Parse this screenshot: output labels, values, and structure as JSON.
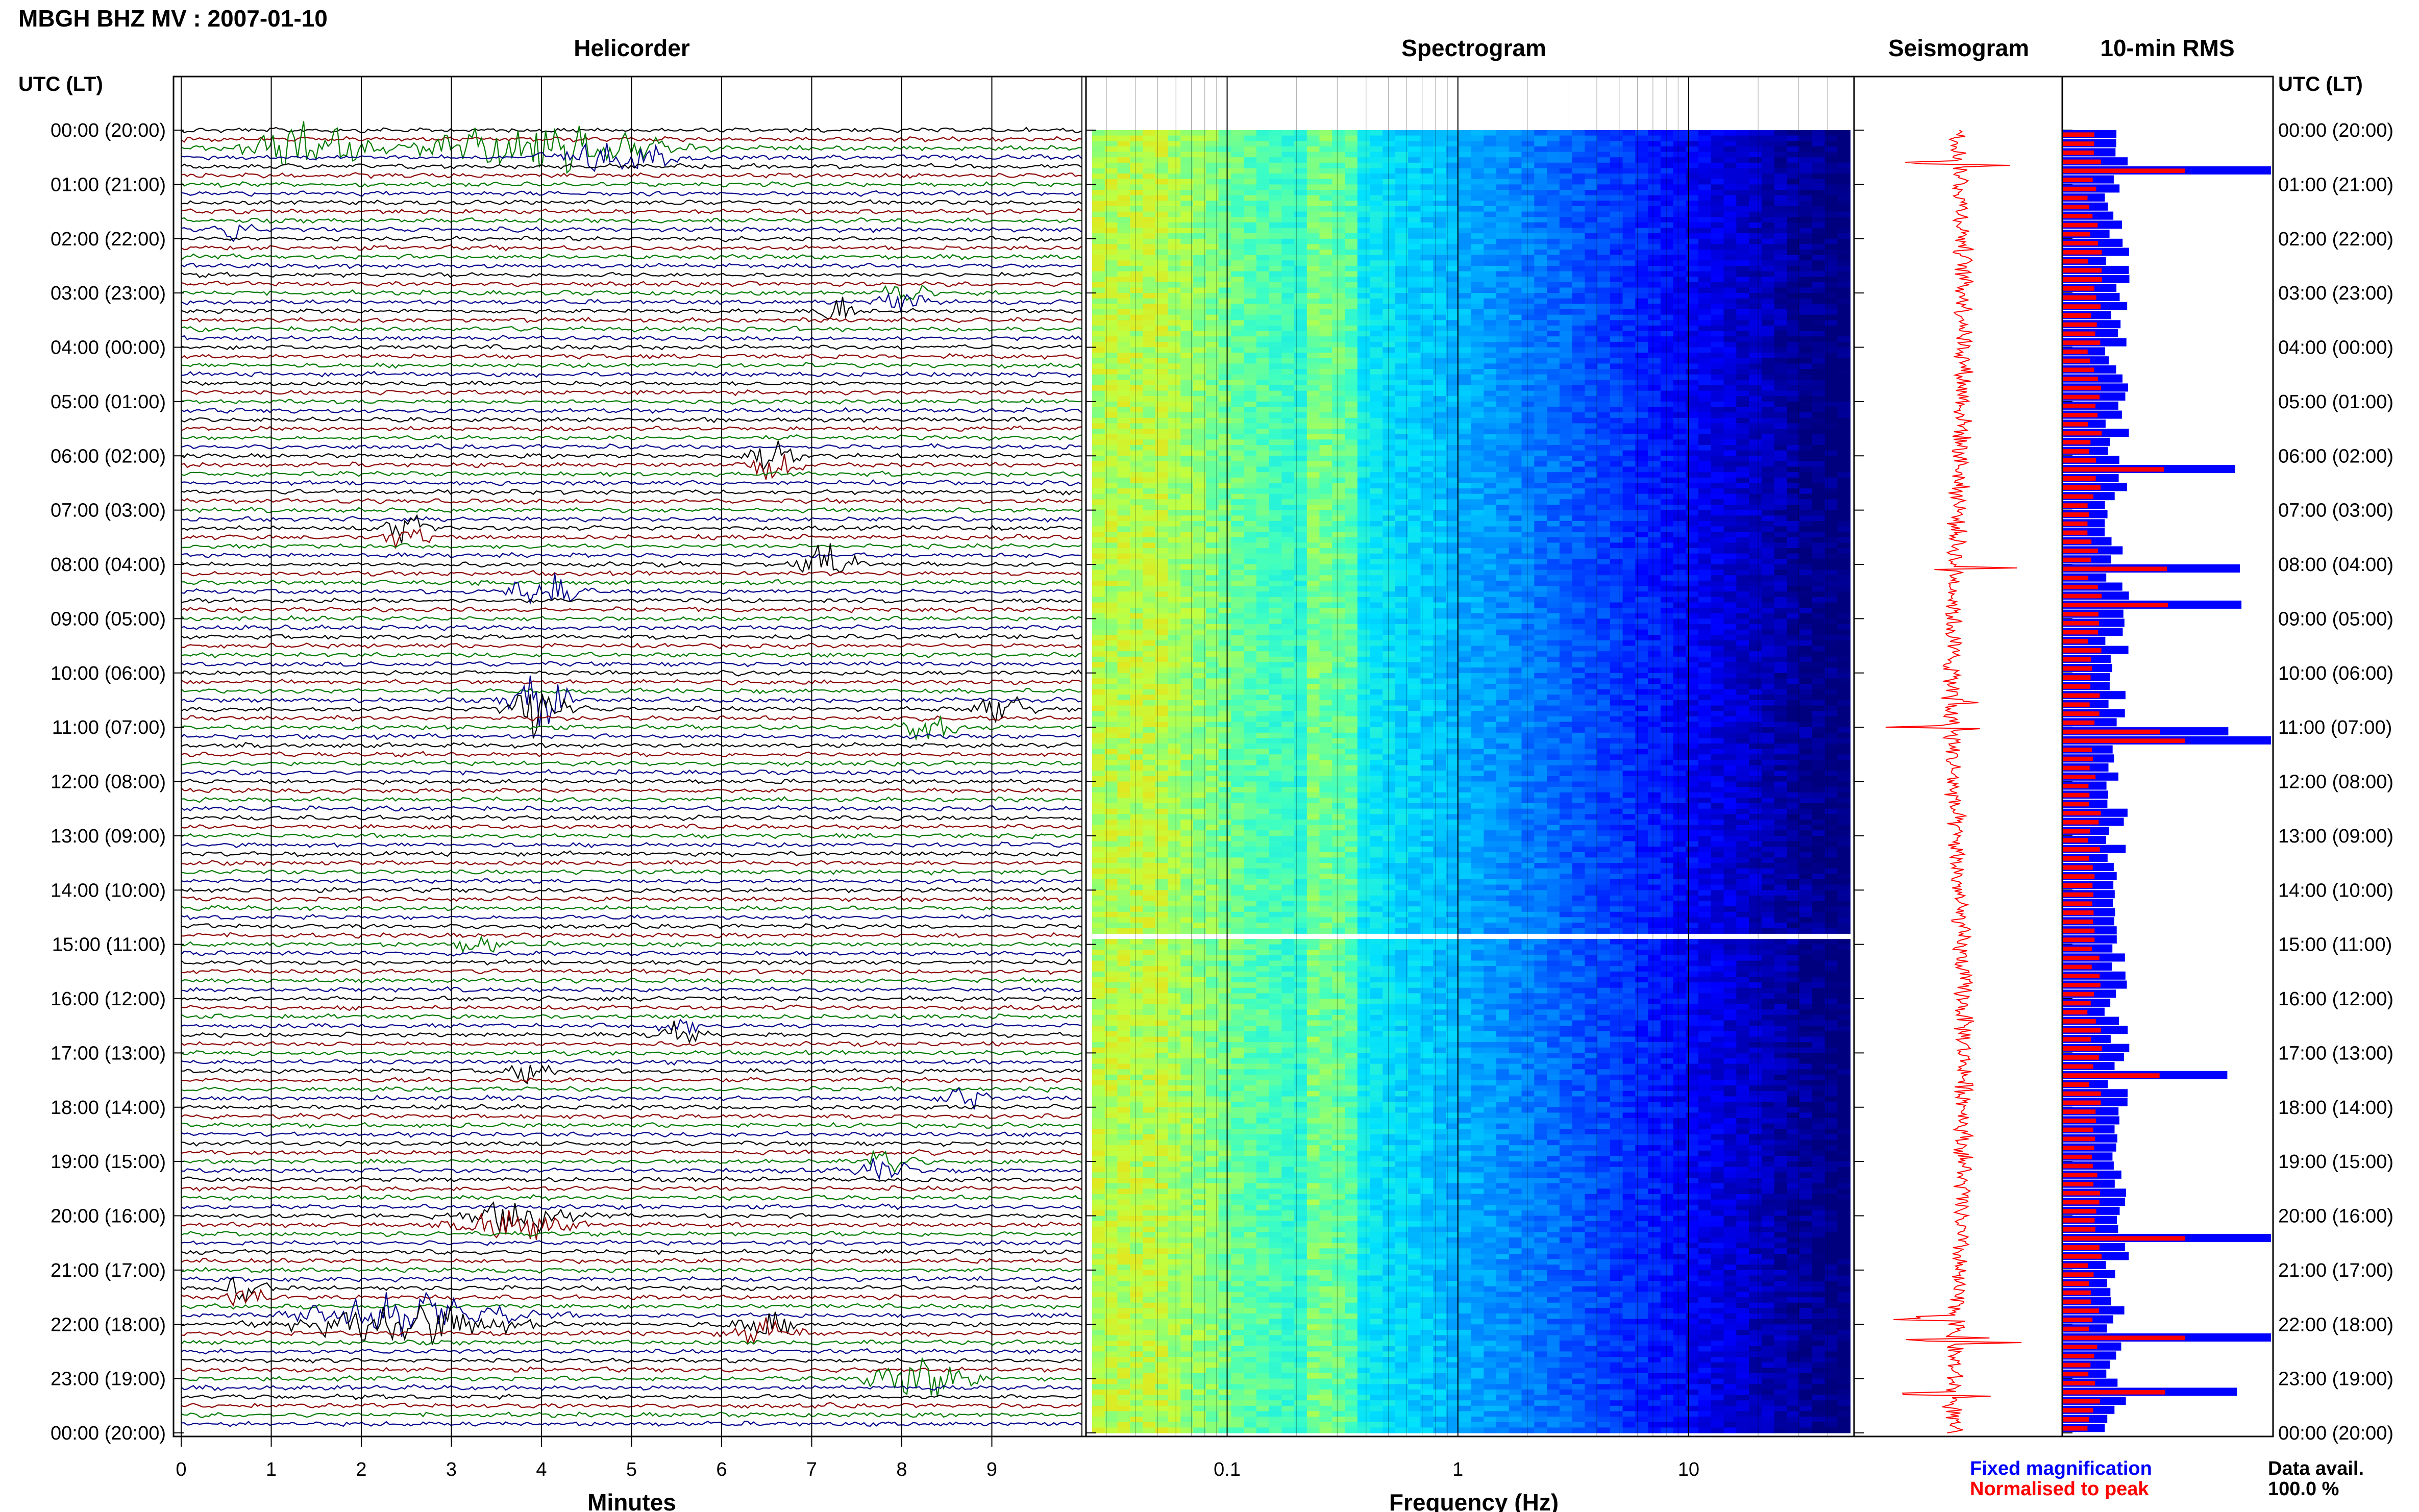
{
  "header": {
    "title": "MBGH BHZ MV : 2007-01-10",
    "utc_label_left": "UTC (LT)",
    "utc_label_right": "UTC (LT)"
  },
  "panels": {
    "helicorder_title": "Helicorder",
    "spectrogram_title": "Spectrogram",
    "seismogram_title": "Seismogram",
    "rms_title": "10-min RMS"
  },
  "footer": {
    "legend_fixed": "Fixed magnification",
    "legend_normalised": "Normalised to peak",
    "data_avail_label": "Data avail.",
    "data_avail_value": "100.0 %"
  },
  "colors": {
    "trace_black": "#000000",
    "trace_red": "#8b0000",
    "trace_blue": "#00008b",
    "trace_green": "#007a00",
    "seismogram": "#ff0000",
    "rms_fixed": "#0000ff",
    "rms_normalised": "#ff0000"
  },
  "chart_data": {
    "time_labels": [
      "00:00 (20:00)",
      "01:00 (21:00)",
      "02:00 (22:00)",
      "03:00 (23:00)",
      "04:00 (00:00)",
      "05:00 (01:00)",
      "06:00 (02:00)",
      "07:00 (03:00)",
      "08:00 (04:00)",
      "09:00 (05:00)",
      "10:00 (06:00)",
      "11:00 (07:00)",
      "12:00 (08:00)",
      "13:00 (09:00)",
      "14:00 (10:00)",
      "15:00 (11:00)",
      "16:00 (12:00)",
      "17:00 (13:00)",
      "18:00 (14:00)",
      "19:00 (15:00)",
      "20:00 (16:00)",
      "21:00 (17:00)",
      "22:00 (18:00)",
      "23:00 (19:00)",
      "00:00 (20:00)"
    ],
    "helicorder": {
      "type": "line",
      "xlabel": "Minutes",
      "xticks": [
        "0",
        "1",
        "2",
        "3",
        "4",
        "5",
        "6",
        "7",
        "8",
        "9"
      ],
      "xlim": [
        0,
        10
      ],
      "rows_per_hour": 6,
      "color_cycle": [
        "black",
        "red",
        "green",
        "blue"
      ],
      "events": [
        {
          "hour": 0.3,
          "minute": 1.4,
          "width": 1.3,
          "amp": 3.0
        },
        {
          "hour": 0.3,
          "minute": 4.0,
          "width": 2.6,
          "amp": 3.5
        },
        {
          "hour": 0.5,
          "minute": 4.8,
          "width": 1.5,
          "amp": 2.0
        },
        {
          "hour": 1.8,
          "minute": 0.6,
          "width": 0.4,
          "amp": 1.2
        },
        {
          "hour": 3.3,
          "minute": 7.3,
          "width": 0.5,
          "amp": 1.5
        },
        {
          "hour": 3.1,
          "minute": 8.0,
          "width": 0.7,
          "amp": 1.2
        },
        {
          "hour": 6.1,
          "minute": 6.6,
          "width": 0.6,
          "amp": 2.2
        },
        {
          "hour": 7.4,
          "minute": 2.5,
          "width": 0.6,
          "amp": 1.5
        },
        {
          "hour": 8.0,
          "minute": 7.2,
          "width": 0.6,
          "amp": 3.0
        },
        {
          "hour": 8.5,
          "minute": 4.0,
          "width": 0.8,
          "amp": 2.5
        },
        {
          "hour": 10.6,
          "minute": 4.0,
          "width": 0.7,
          "amp": 3.5
        },
        {
          "hour": 10.7,
          "minute": 9.1,
          "width": 0.6,
          "amp": 2.0
        },
        {
          "hour": 11.0,
          "minute": 8.3,
          "width": 0.6,
          "amp": 2.0
        },
        {
          "hour": 15.0,
          "minute": 3.3,
          "width": 0.5,
          "amp": 1.5
        },
        {
          "hour": 16.6,
          "minute": 5.5,
          "width": 0.5,
          "amp": 1.5
        },
        {
          "hour": 17.3,
          "minute": 3.9,
          "width": 0.5,
          "amp": 1.5
        },
        {
          "hour": 17.8,
          "minute": 8.7,
          "width": 0.5,
          "amp": 1.5
        },
        {
          "hour": 19.1,
          "minute": 7.8,
          "width": 0.6,
          "amp": 1.5
        },
        {
          "hour": 20.1,
          "minute": 3.7,
          "width": 1.2,
          "amp": 2.0
        },
        {
          "hour": 21.4,
          "minute": 0.7,
          "width": 0.5,
          "amp": 1.5
        },
        {
          "hour": 21.9,
          "minute": 2.5,
          "width": 2.5,
          "amp": 2.5
        },
        {
          "hour": 22.1,
          "minute": 6.5,
          "width": 0.8,
          "amp": 1.5
        },
        {
          "hour": 23.0,
          "minute": 8.2,
          "width": 1.2,
          "amp": 2.5
        }
      ]
    },
    "spectrogram": {
      "type": "heatmap",
      "xlabel": "Frequency (Hz)",
      "xscale": "log",
      "xticks": [
        0.1,
        1,
        10
      ],
      "xtick_labels": [
        "0.1",
        "1",
        "10"
      ],
      "xlim": [
        0.026,
        50
      ],
      "gap_hour": 14.85
    },
    "seismogram": {
      "type": "line",
      "color": "red",
      "spikes_hours": [
        0.6,
        8.1,
        10.5,
        11.0,
        21.9,
        22.3,
        23.3
      ]
    },
    "rms": {
      "type": "bar",
      "series": [
        {
          "name": "Fixed magnification",
          "color": "blue"
        },
        {
          "name": "Normalised to peak",
          "color": "red"
        }
      ],
      "peaks_hours": [
        0.7,
        6.2,
        8.0,
        8.6,
        11.0,
        11.2,
        17.3,
        20.4,
        22.1,
        23.2
      ]
    }
  }
}
